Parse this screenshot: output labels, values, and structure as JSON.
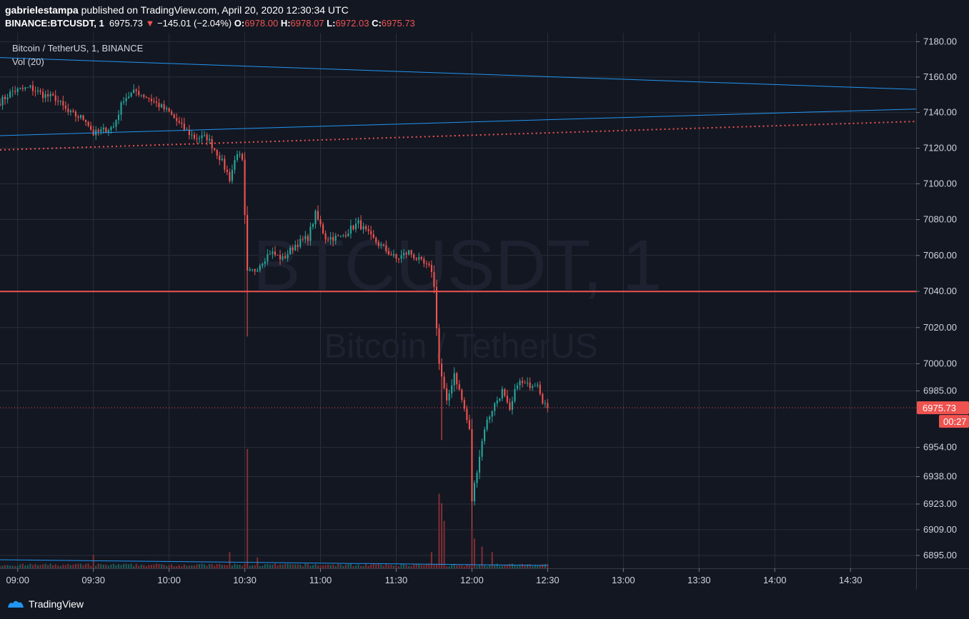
{
  "header": {
    "author": "gabrielestampa",
    "published_text": "published on TradingView.com, April 20, 2020 12:30:34 UTC",
    "symbol": "BINANCE:BTCUSDT, 1",
    "last": "6975.73",
    "change": "−145.01 (−2.04%)",
    "o_label": "O:",
    "o": "6978.00",
    "h_label": "H:",
    "h": "6978.07",
    "l_label": "L:",
    "l": "6972.03",
    "c_label": "C:",
    "c": "6975.73"
  },
  "legend": {
    "title": "Bitcoin / TetherUS, 1, BINANCE",
    "vol": "Vol (20)"
  },
  "watermark": {
    "line1": "BTCUSDT, 1",
    "line2": "Bitcoin / TetherUS"
  },
  "footer": {
    "brand": "TradingView"
  },
  "colors": {
    "background": "#131722",
    "up": "#26a69a",
    "down": "#ef5350",
    "trendline": "#2196f3",
    "grid": "#2a2e39"
  },
  "chart_data": {
    "type": "candlestick",
    "y_scale": "log",
    "ylim": [
      6888,
      7185
    ],
    "y_ticks": [
      "7180.00",
      "7160.00",
      "7140.00",
      "7120.00",
      "7100.00",
      "7080.00",
      "7060.00",
      "7040.00",
      "7020.00",
      "7000.00",
      "6985.00",
      "6954.00",
      "6938.00",
      "6923.00",
      "6909.00",
      "6895.00"
    ],
    "x_ticks": [
      "09:00",
      "09:30",
      "10:00",
      "10:30",
      "11:00",
      "11:30",
      "12:00",
      "12:30",
      "13:00",
      "13:30",
      "14:00",
      "14:30"
    ],
    "x_range": [
      "08:53",
      "14:56"
    ],
    "price_label": "6975.73",
    "countdown": "00:27",
    "horizontal_level": 7040,
    "anchors": [
      [
        "08:53",
        7146
      ],
      [
        "08:58",
        7152
      ],
      [
        "09:05",
        7154
      ],
      [
        "09:10",
        7150
      ],
      [
        "09:15",
        7148
      ],
      [
        "09:20",
        7140
      ],
      [
        "09:27",
        7136
      ],
      [
        "09:30",
        7128
      ],
      [
        "09:34",
        7130
      ],
      [
        "09:38",
        7132
      ],
      [
        "09:42",
        7148
      ],
      [
        "09:47",
        7152
      ],
      [
        "09:52",
        7148
      ],
      [
        "10:00",
        7140
      ],
      [
        "10:05",
        7132
      ],
      [
        "10:10",
        7126
      ],
      [
        "10:15",
        7126
      ],
      [
        "10:20",
        7115
      ],
      [
        "10:24",
        7103
      ],
      [
        "10:27",
        7118
      ],
      [
        "10:29",
        7112
      ],
      [
        "10:31",
        7050
      ],
      [
        "10:34",
        7052
      ],
      [
        "10:40",
        7062
      ],
      [
        "10:45",
        7058
      ],
      [
        "10:50",
        7066
      ],
      [
        "10:55",
        7070
      ],
      [
        "10:58",
        7083
      ],
      [
        "11:02",
        7070
      ],
      [
        "11:08",
        7070
      ],
      [
        "11:12",
        7075
      ],
      [
        "11:15",
        7078
      ],
      [
        "11:20",
        7070
      ],
      [
        "11:25",
        7064
      ],
      [
        "11:30",
        7058
      ],
      [
        "11:35",
        7062
      ],
      [
        "11:40",
        7056
      ],
      [
        "11:44",
        7052
      ],
      [
        "11:45",
        7042
      ],
      [
        "11:47",
        7000
      ],
      [
        "11:50",
        6978
      ],
      [
        "11:53",
        6995
      ],
      [
        "11:57",
        6975
      ],
      [
        "11:59",
        6963
      ],
      [
        "12:00",
        6925
      ],
      [
        "12:02",
        6942
      ],
      [
        "12:05",
        6965
      ],
      [
        "12:08",
        6975
      ],
      [
        "12:12",
        6985
      ],
      [
        "12:15",
        6973
      ],
      [
        "12:18",
        6990
      ],
      [
        "12:22",
        6988
      ],
      [
        "12:26",
        6990
      ],
      [
        "12:28",
        6980
      ],
      [
        "12:30",
        6975.73
      ]
    ],
    "trendlines": [
      {
        "name": "upper-descending",
        "from": [
          "08:53",
          7171
        ],
        "to": [
          "14:56",
          7153
        ]
      },
      {
        "name": "upper-ascending",
        "from": [
          "08:53",
          7127
        ],
        "to": [
          "14:56",
          7142
        ]
      },
      {
        "name": "dotted-support",
        "from": [
          "08:53",
          7119
        ],
        "to": [
          "14:56",
          7135
        ],
        "dotted": true
      }
    ],
    "volume_spikes": [
      {
        "time": "09:30",
        "rel": 0.1
      },
      {
        "time": "10:24",
        "rel": 0.12
      },
      {
        "time": "10:31",
        "rel": 0.88
      },
      {
        "time": "10:35",
        "rel": 0.08
      },
      {
        "time": "11:44",
        "rel": 0.12
      },
      {
        "time": "11:47",
        "rel": 0.55
      },
      {
        "time": "11:48",
        "rel": 0.48
      },
      {
        "time": "11:49",
        "rel": 0.35
      },
      {
        "time": "12:00",
        "rel": 0.3
      },
      {
        "time": "12:01",
        "rel": 0.22
      },
      {
        "time": "12:04",
        "rel": 0.16
      },
      {
        "time": "12:08",
        "rel": 0.12
      }
    ]
  }
}
